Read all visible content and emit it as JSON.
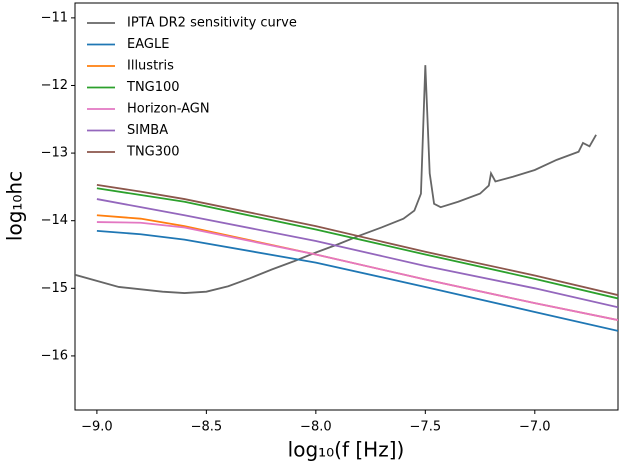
{
  "chart_data": {
    "type": "line",
    "xlabel": "log₁₀(f [Hz])",
    "ylabel": "log₁₀hc",
    "xlim": [
      -9.1,
      -6.62
    ],
    "ylim": [
      -16.8,
      -10.78
    ],
    "xticks": [
      {
        "value": -9,
        "label": "−9.0"
      },
      {
        "value": -8.5,
        "label": "−8.5"
      },
      {
        "value": -8,
        "label": "−8.0"
      },
      {
        "value": -7.5,
        "label": "−7.5"
      },
      {
        "value": -7,
        "label": "−7.0"
      }
    ],
    "yticks": [
      {
        "value": -16,
        "label": "−16"
      },
      {
        "value": -15,
        "label": "−15"
      },
      {
        "value": -14,
        "label": "−14"
      },
      {
        "value": -13,
        "label": "−13"
      },
      {
        "value": -12,
        "label": "−12"
      },
      {
        "value": -11,
        "label": "−11"
      }
    ],
    "legend": "upper left",
    "series": [
      {
        "name": "IPTA DR2 sensitivity curve",
        "color": "#666666",
        "x": [
          -9.1,
          -8.9,
          -8.7,
          -8.6,
          -8.5,
          -8.4,
          -8.3,
          -8.2,
          -8.1,
          -8.0,
          -7.9,
          -7.8,
          -7.7,
          -7.6,
          -7.55,
          -7.52,
          -7.5,
          -7.48,
          -7.46,
          -7.43,
          -7.35,
          -7.25,
          -7.21,
          -7.2,
          -7.18,
          -7.1,
          -7.0,
          -6.9,
          -6.8,
          -6.78,
          -6.75,
          -6.72
        ],
        "values": [
          -14.8,
          -14.98,
          -15.05,
          -15.07,
          -15.05,
          -14.97,
          -14.85,
          -14.72,
          -14.6,
          -14.47,
          -14.35,
          -14.22,
          -14.1,
          -13.97,
          -13.85,
          -13.6,
          -11.7,
          -13.3,
          -13.75,
          -13.8,
          -13.72,
          -13.6,
          -13.48,
          -13.3,
          -13.42,
          -13.35,
          -13.25,
          -13.1,
          -12.98,
          -12.85,
          -12.9,
          -12.73
        ]
      },
      {
        "name": "EAGLE",
        "color": "#1f77b4",
        "x": [
          -9,
          -8.8,
          -8.6,
          -8.0,
          -7.5,
          -7.0,
          -6.62
        ],
        "values": [
          -14.15,
          -14.2,
          -14.28,
          -14.62,
          -14.98,
          -15.35,
          -15.63
        ]
      },
      {
        "name": "Illustris",
        "color": "#ff7f0e",
        "x": [
          -9,
          -8.8,
          -8.6,
          -8.0,
          -7.5,
          -7.0,
          -6.62
        ],
        "values": [
          -13.92,
          -13.97,
          -14.08,
          -14.5,
          -14.87,
          -15.22,
          -15.47
        ]
      },
      {
        "name": "TNG100",
        "color": "#2ca02c",
        "x": [
          -9,
          -8.8,
          -8.6,
          -8.0,
          -7.5,
          -7.0,
          -6.62
        ],
        "values": [
          -13.52,
          -13.62,
          -13.72,
          -14.13,
          -14.5,
          -14.86,
          -15.15
        ]
      },
      {
        "name": "Horizon-AGN",
        "color": "#e377c2",
        "x": [
          -9,
          -8.8,
          -8.6,
          -8.0,
          -7.5,
          -7.0,
          -6.62
        ],
        "values": [
          -14.02,
          -14.03,
          -14.1,
          -14.5,
          -14.87,
          -15.22,
          -15.47
        ]
      },
      {
        "name": "SIMBA",
        "color": "#9467bd",
        "x": [
          -9,
          -8.8,
          -8.6,
          -8.0,
          -7.5,
          -7.0,
          -6.62
        ],
        "values": [
          -13.68,
          -13.8,
          -13.92,
          -14.3,
          -14.67,
          -15.0,
          -15.28
        ]
      },
      {
        "name": "TNG300",
        "color": "#8c564b",
        "x": [
          -9,
          -8.8,
          -8.6,
          -8.0,
          -7.5,
          -7.0,
          -6.62
        ],
        "values": [
          -13.47,
          -13.57,
          -13.68,
          -14.08,
          -14.46,
          -14.81,
          -15.1
        ]
      }
    ]
  }
}
